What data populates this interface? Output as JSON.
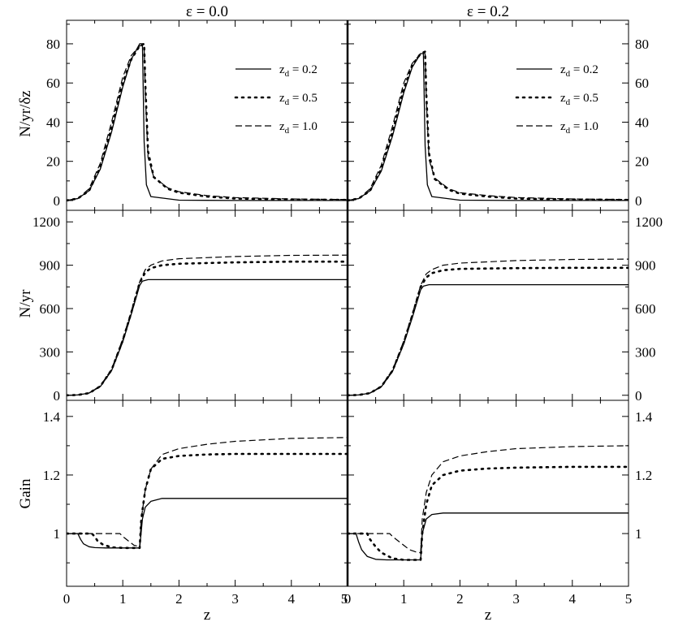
{
  "figure": {
    "xlabel": "z",
    "column_titles": [
      "ε = 0.0",
      "ε = 0.2"
    ],
    "row_ylabels": [
      "N/yr/δz",
      "N/yr",
      "Gain"
    ]
  },
  "legend": {
    "entries": [
      {
        "var": "z",
        "sub": "d",
        "rest": " = 0.2",
        "style": "solid"
      },
      {
        "var": "z",
        "sub": "d",
        "rest": " = 0.5",
        "style": "dotted"
      },
      {
        "var": "z",
        "sub": "d",
        "rest": " = 1.0",
        "style": "dashed"
      }
    ]
  },
  "chart_data": [
    {
      "type": "line",
      "row": 0,
      "col": 0,
      "title": "ε = 0.0",
      "ylabel": "N/yr/δz",
      "xlabel": "",
      "xlim": [
        0,
        5
      ],
      "ylim": [
        -5,
        92
      ],
      "xticks": [
        0,
        1,
        2,
        3,
        4,
        5
      ],
      "xticklabels": [],
      "yticks": [
        0,
        20,
        40,
        60,
        80
      ],
      "yticklabels": [
        "0",
        "20",
        "40",
        "60",
        "80"
      ],
      "yticks_side": "left",
      "legend": true,
      "legend_position": "top-right",
      "series": [
        {
          "name": "zd = 0.2",
          "style": "solid",
          "x": [
            0,
            0.2,
            0.4,
            0.6,
            0.8,
            1.0,
            1.15,
            1.3,
            1.35,
            1.38,
            1.42,
            1.5,
            2.0,
            3.0,
            4.0,
            5.0
          ],
          "y": [
            0,
            1,
            5,
            16,
            35,
            58,
            72,
            80,
            80,
            30,
            8,
            2,
            0.2,
            0,
            0,
            0
          ]
        },
        {
          "name": "zd = 0.5",
          "style": "dotted",
          "x": [
            0,
            0.2,
            0.4,
            0.6,
            0.8,
            1.0,
            1.15,
            1.3,
            1.38,
            1.4,
            1.45,
            1.55,
            1.8,
            2.0,
            2.5,
            3.0,
            4.0,
            5.0
          ],
          "y": [
            0,
            1,
            5,
            17,
            37,
            60,
            72,
            79,
            80,
            60,
            25,
            12,
            6,
            4,
            2,
            1,
            0.5,
            0.3
          ]
        },
        {
          "name": "zd = 1.0",
          "style": "dashed",
          "x": [
            0,
            0.2,
            0.4,
            0.6,
            0.8,
            1.0,
            1.15,
            1.3,
            1.38,
            1.4,
            1.45,
            1.55,
            1.8,
            2.0,
            2.5,
            3.0,
            4.0,
            5.0
          ],
          "y": [
            0,
            1,
            6,
            19,
            40,
            63,
            74,
            79,
            79,
            55,
            22,
            12,
            6.5,
            4.5,
            2.5,
            1.5,
            0.8,
            0.5
          ]
        }
      ]
    },
    {
      "type": "line",
      "row": 0,
      "col": 1,
      "title": "ε = 0.2",
      "ylabel": "",
      "xlabel": "",
      "xlim": [
        0,
        5
      ],
      "ylim": [
        -5,
        92
      ],
      "xticks": [
        0,
        1,
        2,
        3,
        4,
        5
      ],
      "xticklabels": [],
      "yticks": [
        0,
        20,
        40,
        60,
        80
      ],
      "yticklabels": [
        "0",
        "20",
        "40",
        "60",
        "80"
      ],
      "yticks_side": "right",
      "legend": true,
      "legend_position": "top-right",
      "series": [
        {
          "name": "zd = 0.2",
          "style": "solid",
          "x": [
            0,
            0.2,
            0.4,
            0.6,
            0.8,
            1.0,
            1.15,
            1.3,
            1.35,
            1.38,
            1.42,
            1.5,
            2.0,
            3.0,
            4.0,
            5.0
          ],
          "y": [
            0,
            1,
            5,
            15,
            33,
            55,
            68,
            75,
            75,
            28,
            8,
            2,
            0.2,
            0,
            0,
            0
          ]
        },
        {
          "name": "zd = 0.5",
          "style": "dotted",
          "x": [
            0,
            0.2,
            0.4,
            0.6,
            0.8,
            1.0,
            1.15,
            1.3,
            1.38,
            1.4,
            1.45,
            1.55,
            1.8,
            2.0,
            2.5,
            3.0,
            4.0,
            5.0
          ],
          "y": [
            0,
            1,
            5,
            16,
            35,
            57,
            69,
            75,
            76,
            55,
            24,
            11,
            5.5,
            3.5,
            2,
            1,
            0.5,
            0.3
          ]
        },
        {
          "name": "zd = 1.0",
          "style": "dashed",
          "x": [
            0,
            0.2,
            0.4,
            0.6,
            0.8,
            1.0,
            1.15,
            1.3,
            1.38,
            1.4,
            1.45,
            1.55,
            1.8,
            2.0,
            2.5,
            3.0,
            4.0,
            5.0
          ],
          "y": [
            0,
            1,
            6,
            18,
            38,
            60,
            70,
            75,
            75,
            52,
            21,
            11.5,
            6,
            4,
            2.5,
            1.5,
            0.8,
            0.5
          ]
        }
      ]
    },
    {
      "type": "line",
      "row": 1,
      "col": 0,
      "title": "",
      "ylabel": "N/yr",
      "xlabel": "",
      "xlim": [
        0,
        5
      ],
      "ylim": [
        -35,
        1280
      ],
      "xticks": [
        0,
        1,
        2,
        3,
        4,
        5
      ],
      "xticklabels": [],
      "yticks": [
        0,
        300,
        600,
        900,
        1200
      ],
      "yticklabels": [
        "0",
        "300",
        "600",
        "900",
        "1200"
      ],
      "yticks_side": "left",
      "legend": false,
      "series": [
        {
          "name": "zd = 0.2",
          "style": "solid",
          "x": [
            0,
            0.2,
            0.4,
            0.6,
            0.8,
            1.0,
            1.15,
            1.3,
            1.35,
            1.45,
            2.0,
            3.0,
            4.0,
            5.0
          ],
          "y": [
            0,
            2,
            15,
            60,
            170,
            370,
            560,
            760,
            790,
            800,
            800,
            800,
            800,
            800
          ]
        },
        {
          "name": "zd = 0.5",
          "style": "dotted",
          "x": [
            0,
            0.2,
            0.4,
            0.6,
            0.8,
            1.0,
            1.15,
            1.3,
            1.4,
            1.5,
            1.7,
            2.0,
            3.0,
            4.0,
            5.0
          ],
          "y": [
            0,
            2,
            15,
            62,
            175,
            380,
            570,
            780,
            850,
            880,
            900,
            910,
            920,
            925,
            925
          ]
        },
        {
          "name": "zd = 1.0",
          "style": "dashed",
          "x": [
            0,
            0.2,
            0.4,
            0.6,
            0.8,
            1.0,
            1.15,
            1.3,
            1.4,
            1.5,
            1.7,
            2.0,
            3.0,
            4.0,
            5.0
          ],
          "y": [
            0,
            2,
            16,
            65,
            180,
            390,
            580,
            785,
            870,
            900,
            930,
            945,
            960,
            968,
            970
          ]
        }
      ]
    },
    {
      "type": "line",
      "row": 1,
      "col": 1,
      "title": "",
      "ylabel": "",
      "xlabel": "",
      "xlim": [
        0,
        5
      ],
      "ylim": [
        -35,
        1280
      ],
      "xticks": [
        0,
        1,
        2,
        3,
        4,
        5
      ],
      "xticklabels": [],
      "yticks": [
        0,
        300,
        600,
        900,
        1200
      ],
      "yticklabels": [
        "0",
        "300",
        "600",
        "900",
        "1200"
      ],
      "yticks_side": "right",
      "legend": false,
      "series": [
        {
          "name": "zd = 0.2",
          "style": "solid",
          "x": [
            0,
            0.2,
            0.4,
            0.6,
            0.8,
            1.0,
            1.15,
            1.3,
            1.35,
            1.45,
            2.0,
            3.0,
            4.0,
            5.0
          ],
          "y": [
            0,
            2,
            15,
            58,
            165,
            355,
            535,
            730,
            755,
            765,
            765,
            765,
            765,
            765
          ]
        },
        {
          "name": "zd = 0.5",
          "style": "dotted",
          "x": [
            0,
            0.2,
            0.4,
            0.6,
            0.8,
            1.0,
            1.15,
            1.3,
            1.4,
            1.5,
            1.7,
            2.0,
            3.0,
            4.0,
            5.0
          ],
          "y": [
            0,
            2,
            15,
            60,
            170,
            365,
            550,
            750,
            815,
            845,
            865,
            875,
            880,
            882,
            882
          ]
        },
        {
          "name": "zd = 1.0",
          "style": "dashed",
          "x": [
            0,
            0.2,
            0.4,
            0.6,
            0.8,
            1.0,
            1.15,
            1.3,
            1.4,
            1.5,
            1.7,
            2.0,
            3.0,
            4.0,
            5.0
          ],
          "y": [
            0,
            2,
            16,
            63,
            175,
            375,
            560,
            760,
            840,
            870,
            900,
            915,
            932,
            940,
            942
          ]
        }
      ]
    },
    {
      "type": "line",
      "row": 2,
      "col": 0,
      "title": "",
      "ylabel": "Gain",
      "xlabel": "z",
      "xlim": [
        0,
        5
      ],
      "ylim": [
        0.82,
        1.455
      ],
      "xticks": [
        0,
        1,
        2,
        3,
        4,
        5
      ],
      "xticklabels": [
        "0",
        "1",
        "2",
        "3",
        "4",
        "5"
      ],
      "yticks": [
        1,
        1.2,
        1.4
      ],
      "yticklabels": [
        "1",
        "1.2",
        "1.4"
      ],
      "yticks_side": "left",
      "legend": false,
      "series": [
        {
          "name": "zd = 0.2",
          "style": "solid",
          "x": [
            0,
            0.2,
            0.25,
            0.3,
            0.4,
            0.5,
            0.7,
            1.0,
            1.3,
            1.35,
            1.4,
            1.5,
            1.7,
            2.0,
            3.0,
            4.0,
            5.0
          ],
          "y": [
            1.0,
            1.0,
            0.98,
            0.965,
            0.955,
            0.952,
            0.951,
            0.951,
            0.951,
            1.05,
            1.09,
            1.11,
            1.12,
            1.12,
            1.12,
            1.12,
            1.12
          ]
        },
        {
          "name": "zd = 0.5",
          "style": "dotted",
          "x": [
            0,
            0.45,
            0.5,
            0.55,
            0.65,
            0.8,
            1.0,
            1.3,
            1.33,
            1.4,
            1.5,
            1.7,
            2.0,
            2.5,
            3.0,
            4.0,
            5.0
          ],
          "y": [
            1.0,
            1.0,
            0.99,
            0.975,
            0.962,
            0.953,
            0.951,
            0.951,
            1.05,
            1.15,
            1.22,
            1.255,
            1.265,
            1.27,
            1.272,
            1.272,
            1.272
          ]
        },
        {
          "name": "zd = 1.0",
          "style": "dashed",
          "x": [
            0,
            0.95,
            1.0,
            1.1,
            1.2,
            1.3,
            1.33,
            1.4,
            1.5,
            1.7,
            2.0,
            2.5,
            3.0,
            4.0,
            5.0
          ],
          "y": [
            1.0,
            1.0,
            0.99,
            0.975,
            0.96,
            0.955,
            1.05,
            1.15,
            1.22,
            1.27,
            1.29,
            1.305,
            1.315,
            1.325,
            1.328
          ]
        }
      ]
    },
    {
      "type": "line",
      "row": 2,
      "col": 1,
      "title": "",
      "ylabel": "",
      "xlabel": "z",
      "xlim": [
        0,
        5
      ],
      "ylim": [
        0.82,
        1.455
      ],
      "xticks": [
        0,
        1,
        2,
        3,
        4,
        5
      ],
      "xticklabels": [
        "0",
        "1",
        "2",
        "3",
        "4",
        "5"
      ],
      "yticks": [
        1,
        1.2,
        1.4
      ],
      "yticklabels": [
        "1",
        "1.2",
        "1.4"
      ],
      "yticks_side": "right",
      "legend": false,
      "series": [
        {
          "name": "zd = 0.2",
          "style": "solid",
          "x": [
            0,
            0.15,
            0.2,
            0.25,
            0.35,
            0.5,
            0.7,
            1.0,
            1.3,
            1.33,
            1.4,
            1.5,
            1.7,
            2.0,
            3.0,
            4.0,
            5.0
          ],
          "y": [
            1.0,
            1.0,
            0.97,
            0.945,
            0.922,
            0.912,
            0.91,
            0.91,
            0.91,
            1.0,
            1.05,
            1.065,
            1.07,
            1.07,
            1.07,
            1.07,
            1.07
          ]
        },
        {
          "name": "zd = 0.5",
          "style": "dotted",
          "x": [
            0,
            0.35,
            0.4,
            0.5,
            0.6,
            0.8,
            1.0,
            1.3,
            1.33,
            1.4,
            1.5,
            1.7,
            2.0,
            2.5,
            3.0,
            4.0,
            5.0
          ],
          "y": [
            1.0,
            1.0,
            0.98,
            0.955,
            0.935,
            0.915,
            0.91,
            0.91,
            1.0,
            1.1,
            1.165,
            1.2,
            1.215,
            1.222,
            1.225,
            1.228,
            1.228
          ]
        },
        {
          "name": "zd = 1.0",
          "style": "dashed",
          "x": [
            0,
            0.75,
            0.8,
            0.9,
            1.0,
            1.1,
            1.25,
            1.3,
            1.33,
            1.4,
            1.5,
            1.7,
            2.0,
            2.5,
            3.0,
            4.0,
            5.0
          ],
          "y": [
            1.0,
            1.0,
            0.99,
            0.975,
            0.96,
            0.945,
            0.935,
            0.935,
            1.05,
            1.14,
            1.2,
            1.245,
            1.265,
            1.28,
            1.29,
            1.297,
            1.3
          ]
        }
      ]
    }
  ]
}
